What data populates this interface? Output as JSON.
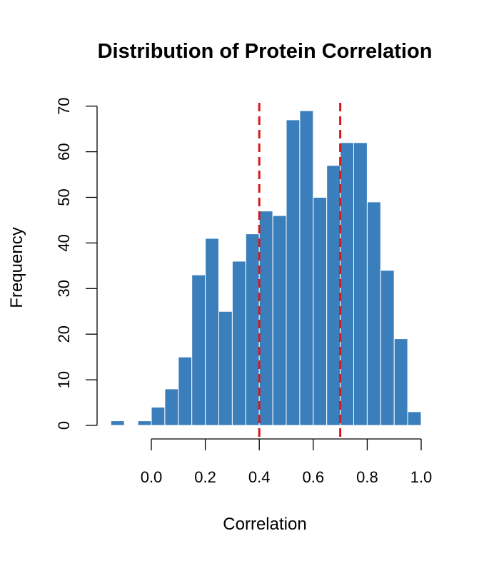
{
  "chart_data": {
    "type": "bar",
    "title": "Distribution of Protein Correlation",
    "xlabel": "Correlation",
    "ylabel": "Frequency",
    "bin_width": 0.05,
    "bins": [
      {
        "start": -0.15,
        "end": -0.1,
        "count": 1
      },
      {
        "start": -0.1,
        "end": -0.05,
        "count": 0
      },
      {
        "start": -0.05,
        "end": 0.0,
        "count": 1
      },
      {
        "start": 0.0,
        "end": 0.05,
        "count": 4
      },
      {
        "start": 0.05,
        "end": 0.1,
        "count": 8
      },
      {
        "start": 0.1,
        "end": 0.15,
        "count": 15
      },
      {
        "start": 0.15,
        "end": 0.2,
        "count": 33
      },
      {
        "start": 0.2,
        "end": 0.25,
        "count": 41
      },
      {
        "start": 0.25,
        "end": 0.3,
        "count": 25
      },
      {
        "start": 0.3,
        "end": 0.35,
        "count": 36
      },
      {
        "start": 0.35,
        "end": 0.4,
        "count": 42
      },
      {
        "start": 0.4,
        "end": 0.45,
        "count": 47
      },
      {
        "start": 0.45,
        "end": 0.5,
        "count": 46
      },
      {
        "start": 0.5,
        "end": 0.55,
        "count": 67
      },
      {
        "start": 0.55,
        "end": 0.6,
        "count": 69
      },
      {
        "start": 0.6,
        "end": 0.65,
        "count": 50
      },
      {
        "start": 0.65,
        "end": 0.7,
        "count": 57
      },
      {
        "start": 0.7,
        "end": 0.75,
        "count": 62
      },
      {
        "start": 0.75,
        "end": 0.8,
        "count": 62
      },
      {
        "start": 0.8,
        "end": 0.85,
        "count": 49
      },
      {
        "start": 0.85,
        "end": 0.9,
        "count": 34
      },
      {
        "start": 0.9,
        "end": 0.95,
        "count": 19
      },
      {
        "start": 0.95,
        "end": 1.0,
        "count": 3
      }
    ],
    "x_ticks": [
      {
        "value": 0.0,
        "label": "0.0"
      },
      {
        "value": 0.2,
        "label": "0.2"
      },
      {
        "value": 0.4,
        "label": "0.4"
      },
      {
        "value": 0.6,
        "label": "0.6"
      },
      {
        "value": 0.8,
        "label": "0.8"
      },
      {
        "value": 1.0,
        "label": "1.0"
      }
    ],
    "y_ticks": [
      {
        "value": 0,
        "label": "0"
      },
      {
        "value": 10,
        "label": "10"
      },
      {
        "value": 20,
        "label": "20"
      },
      {
        "value": 30,
        "label": "30"
      },
      {
        "value": 40,
        "label": "40"
      },
      {
        "value": 50,
        "label": "50"
      },
      {
        "value": 60,
        "label": "60"
      },
      {
        "value": 70,
        "label": "70"
      }
    ],
    "xlim": [
      -0.15,
      1.0
    ],
    "ylim": [
      0,
      70
    ],
    "reference_lines": [
      {
        "axis": "x",
        "value": 0.4,
        "style": "dashed",
        "color": "#d7191c"
      },
      {
        "axis": "x",
        "value": 0.7,
        "style": "dashed",
        "color": "#d7191c"
      }
    ],
    "bar_color": "#3a7fbb",
    "bar_border_color": "#ffffff",
    "grid": false,
    "legend": "none"
  }
}
